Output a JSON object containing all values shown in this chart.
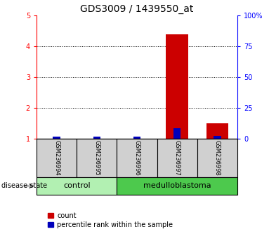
{
  "title": "GDS3009 / 1439550_at",
  "samples": [
    "GSM236994",
    "GSM236995",
    "GSM236996",
    "GSM236997",
    "GSM236998"
  ],
  "red_counts": [
    1.0,
    1.0,
    1.0,
    4.38,
    1.5
  ],
  "blue_percentile_left": [
    1.06,
    1.06,
    1.06,
    1.35,
    1.1
  ],
  "ylim_left": [
    1,
    5
  ],
  "ylim_right": [
    0,
    100
  ],
  "yticks_left": [
    1,
    2,
    3,
    4,
    5
  ],
  "yticks_right": [
    0,
    25,
    50,
    75,
    100
  ],
  "ytick_labels_right": [
    "0",
    "25",
    "50",
    "75",
    "100%"
  ],
  "control_color": "#b2f0b2",
  "medulloblastoma_color": "#4dc94d",
  "sample_box_color": "#d0d0d0",
  "red_bar_color": "#cc0000",
  "blue_bar_color": "#0000bb",
  "red_bar_width": 0.55,
  "blue_bar_width": 0.18,
  "legend_count_label": "count",
  "legend_percentile_label": "percentile rank within the sample",
  "disease_state_label": "disease state",
  "control_label": "control",
  "medulloblastoma_label": "medulloblastoma",
  "title_fontsize": 10,
  "tick_fontsize": 7,
  "label_fontsize": 8,
  "sample_fontsize": 6,
  "legend_fontsize": 7
}
